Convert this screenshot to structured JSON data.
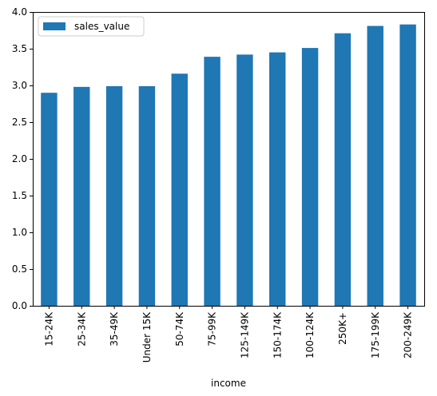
{
  "chart_data": {
    "type": "bar",
    "categories": [
      "15-24K",
      "25-34K",
      "35-49K",
      "Under 15K",
      "50-74K",
      "75-99K",
      "125-149K",
      "150-174K",
      "100-124K",
      "250K+",
      "175-199K",
      "200-249K"
    ],
    "series": [
      {
        "name": "sales_value",
        "values": [
          2.9,
          2.98,
          2.99,
          2.99,
          3.16,
          3.39,
          3.42,
          3.45,
          3.51,
          3.71,
          3.81,
          3.83
        ],
        "color": "#1f77b4"
      }
    ],
    "xlabel": "income",
    "ylabel": "",
    "ylim": [
      0,
      4.0
    ],
    "yticks": [
      "0.0",
      "0.5",
      "1.0",
      "1.5",
      "2.0",
      "2.5",
      "3.0",
      "3.5",
      "4.0"
    ],
    "legend": "top-left",
    "grid": false
  }
}
